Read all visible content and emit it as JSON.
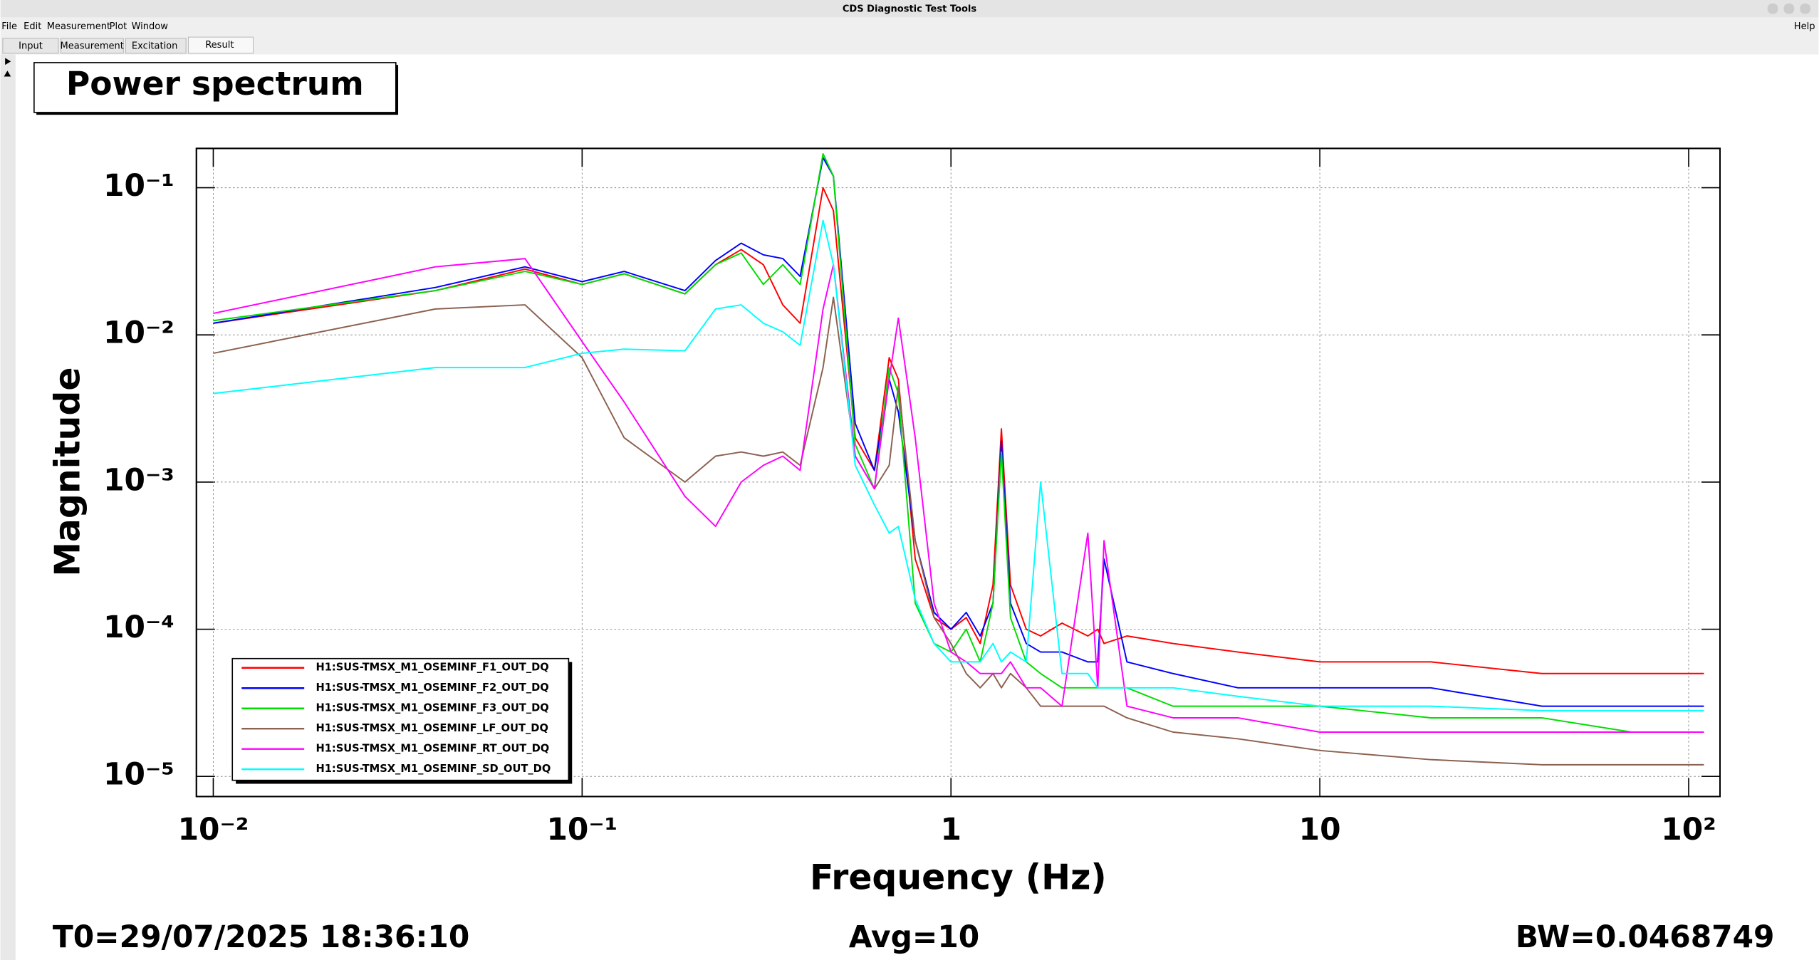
{
  "window_title": "CDS Diagnostic Test Tools",
  "menu": [
    "File",
    "Edit",
    "Measurement",
    "Plot",
    "Window"
  ],
  "help": "Help",
  "tabs": [
    "Input",
    "Measurement",
    "Excitation",
    "Result"
  ],
  "chart_data": {
    "type": "line",
    "title": "Power spectrum",
    "x_label": "Frequency (Hz)",
    "y_label": "Magnitude",
    "annotations": [
      "T0=29/07/2025 18:36:10",
      "Avg=10",
      "BW=0.0468749"
    ],
    "xscale": "log",
    "yscale": "log",
    "grid": true,
    "legend": "lower left",
    "xlim": [
      0.009,
      121.6
    ],
    "ylim": [
      7.3e-06,
      0.185
    ],
    "xticks": [
      {
        "value": 0.01,
        "label": "10⁻²"
      },
      {
        "value": 0.1,
        "label": "10⁻¹"
      },
      1,
      10,
      {
        "value": 100,
        "label": "10²"
      }
    ],
    "yticks": [
      {
        "value": 1e-05,
        "label": "10⁻⁵"
      },
      {
        "value": 0.0001,
        "label": "10⁻⁴"
      },
      {
        "value": 0.001,
        "label": "10⁻³"
      },
      {
        "value": 0.01,
        "label": "10⁻²"
      },
      {
        "value": 0.1,
        "label": "10⁻¹"
      }
    ],
    "x": [
      0.01,
      0.04,
      0.07,
      0.1,
      0.13,
      0.19,
      0.23,
      0.27,
      0.31,
      0.35,
      0.39,
      0.45,
      0.48,
      0.55,
      0.62,
      0.68,
      0.72,
      0.8,
      0.9,
      1.0,
      1.1,
      1.2,
      1.3,
      1.37,
      1.45,
      1.6,
      1.75,
      2.0,
      2.35,
      2.5,
      2.6,
      3,
      4,
      6,
      10,
      20,
      40,
      70,
      110
    ],
    "series": [
      {
        "name": "H1:SUS-TMSX_M1_OSEMINF_F1_OUT_DQ",
        "color": "#ff0000",
        "values": [
          0.012,
          0.02,
          0.028,
          0.022,
          0.026,
          0.019,
          0.03,
          0.038,
          0.03,
          0.016,
          0.012,
          0.1,
          0.07,
          0.002,
          0.0012,
          0.007,
          0.005,
          0.0003,
          0.00012,
          0.0001,
          0.00012,
          8e-05,
          0.0002,
          0.0023,
          0.0002,
          0.0001,
          9e-05,
          0.00011,
          9e-05,
          0.0001,
          8e-05,
          9e-05,
          8e-05,
          7e-05,
          6e-05,
          6e-05,
          5e-05,
          5e-05,
          5e-05
        ]
      },
      {
        "name": "H1:SUS-TMSX_M1_OSEMINF_F2_OUT_DQ",
        "color": "#0000ff",
        "values": [
          0.012,
          0.021,
          0.029,
          0.023,
          0.027,
          0.02,
          0.032,
          0.042,
          0.035,
          0.033,
          0.025,
          0.16,
          0.12,
          0.0025,
          0.0012,
          0.005,
          0.003,
          0.0004,
          0.00013,
          0.0001,
          0.00013,
          9e-05,
          0.00015,
          0.0019,
          0.00015,
          8e-05,
          7e-05,
          7e-05,
          6e-05,
          6e-05,
          0.0003,
          6e-05,
          5e-05,
          4e-05,
          4e-05,
          4e-05,
          3e-05,
          3e-05,
          3e-05
        ]
      },
      {
        "name": "H1:SUS-TMSX_M1_OSEMINF_F3_OUT_DQ",
        "color": "#00dd00",
        "values": [
          0.0125,
          0.02,
          0.027,
          0.022,
          0.026,
          0.019,
          0.03,
          0.036,
          0.022,
          0.03,
          0.022,
          0.17,
          0.12,
          0.0018,
          0.0009,
          0.006,
          0.004,
          0.00015,
          8e-05,
          7e-05,
          0.0001,
          6e-05,
          0.00015,
          0.0016,
          0.00012,
          6e-05,
          5e-05,
          4e-05,
          4e-05,
          4e-05,
          4e-05,
          4e-05,
          3e-05,
          3e-05,
          3e-05,
          2.5e-05,
          2.5e-05,
          2e-05,
          2e-05
        ]
      },
      {
        "name": "H1:SUS-TMSX_M1_OSEMINF_LF_OUT_DQ",
        "color": "#8b6150",
        "values": [
          0.0075,
          0.015,
          0.016,
          0.007,
          0.002,
          0.001,
          0.0015,
          0.0016,
          0.0015,
          0.0016,
          0.0013,
          0.006,
          0.018,
          0.0015,
          0.0009,
          0.0013,
          0.0045,
          0.0004,
          0.00012,
          8e-05,
          5e-05,
          4e-05,
          5e-05,
          4e-05,
          5e-05,
          4e-05,
          3e-05,
          3e-05,
          3e-05,
          3e-05,
          3e-05,
          2.5e-05,
          2e-05,
          1.8e-05,
          1.5e-05,
          1.3e-05,
          1.2e-05,
          1.2e-05,
          1.2e-05
        ]
      },
      {
        "name": "H1:SUS-TMSX_M1_OSEMINF_RT_OUT_DQ",
        "color": "#ff00ff",
        "values": [
          0.014,
          0.029,
          0.033,
          0.009,
          0.0035,
          0.0008,
          0.0005,
          0.001,
          0.0013,
          0.0015,
          0.0012,
          0.015,
          0.03,
          0.0015,
          0.0009,
          0.005,
          0.013,
          0.002,
          0.00015,
          7e-05,
          6e-05,
          5e-05,
          5e-05,
          5e-05,
          6e-05,
          4e-05,
          4e-05,
          3e-05,
          0.00045,
          4e-05,
          0.0004,
          3e-05,
          2.5e-05,
          2.5e-05,
          2e-05,
          2e-05,
          2e-05,
          2e-05,
          2e-05
        ]
      },
      {
        "name": "H1:SUS-TMSX_M1_OSEMINF_SD_OUT_DQ",
        "color": "#00ffff",
        "values": [
          0.004,
          0.006,
          0.006,
          0.0075,
          0.008,
          0.0078,
          0.015,
          0.016,
          0.012,
          0.0105,
          0.0085,
          0.06,
          0.03,
          0.0013,
          0.0007,
          0.00045,
          0.0005,
          0.00016,
          8e-05,
          6e-05,
          6e-05,
          6e-05,
          8e-05,
          6e-05,
          7e-05,
          6e-05,
          0.001,
          5e-05,
          5e-05,
          4e-05,
          4e-05,
          4e-05,
          4e-05,
          3.5e-05,
          3e-05,
          3e-05,
          2.8e-05,
          2.8e-05,
          2.8e-05
        ]
      }
    ]
  }
}
